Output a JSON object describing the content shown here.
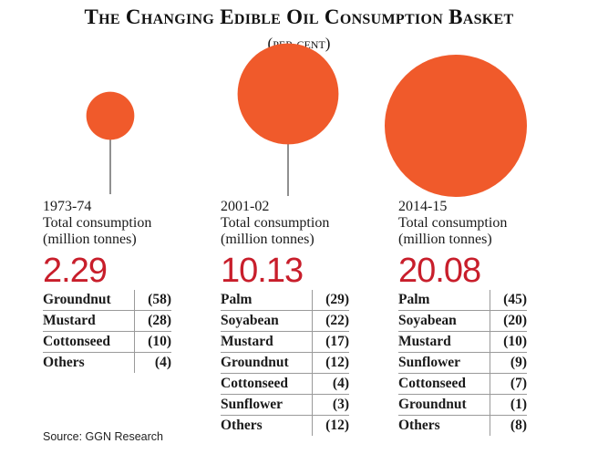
{
  "title": "The Changing Edible Oil Consumption Basket",
  "subtitle": "(per cent)",
  "source": "Source: GGN Research",
  "colors": {
    "bubble": "#f05a2b",
    "total": "#c81e2b"
  },
  "chart_data": {
    "type": "table",
    "title": "The Changing Edible Oil Consumption Basket",
    "subtitle": "(per cent)",
    "periods": [
      {
        "year": "1973-74",
        "label_line1": "Total consumption",
        "label_line2": "(million tonnes)",
        "total": 2.29,
        "total_text": "2.29",
        "shares": [
          {
            "name": "Groundnut",
            "value": 58,
            "text": "(58)"
          },
          {
            "name": "Mustard",
            "value": 28,
            "text": "(28)"
          },
          {
            "name": "Cottonseed",
            "value": 10,
            "text": "(10)"
          },
          {
            "name": "Others",
            "value": 4,
            "text": "(4)"
          }
        ]
      },
      {
        "year": "2001-02",
        "label_line1": "Total consumption",
        "label_line2": "(million tonnes)",
        "total": 10.13,
        "total_text": "10.13",
        "shares": [
          {
            "name": "Palm",
            "value": 29,
            "text": "(29)"
          },
          {
            "name": "Soyabean",
            "value": 22,
            "text": "(22)"
          },
          {
            "name": "Mustard",
            "value": 17,
            "text": "(17)"
          },
          {
            "name": "Groundnut",
            "value": 12,
            "text": "(12)"
          },
          {
            "name": "Cottonseed",
            "value": 4,
            "text": "(4)"
          },
          {
            "name": "Sunflower",
            "value": 3,
            "text": "(3)"
          },
          {
            "name": "Others",
            "value": 12,
            "text": "(12)"
          }
        ]
      },
      {
        "year": "2014-15",
        "label_line1": "Total consumption",
        "label_line2": "(million tonnes)",
        "total": 20.08,
        "total_text": "20.08",
        "shares": [
          {
            "name": "Palm",
            "value": 45,
            "text": "(45)"
          },
          {
            "name": "Soyabean",
            "value": 20,
            "text": "(20)"
          },
          {
            "name": "Mustard",
            "value": 10,
            "text": "(10)"
          },
          {
            "name": "Sunflower",
            "value": 9,
            "text": "(9)"
          },
          {
            "name": "Cottonseed",
            "value": 7,
            "text": "(7)"
          },
          {
            "name": "Groundnut",
            "value": 1,
            "text": "(1)"
          },
          {
            "name": "Others",
            "value": 8,
            "text": "(8)"
          }
        ]
      }
    ]
  }
}
